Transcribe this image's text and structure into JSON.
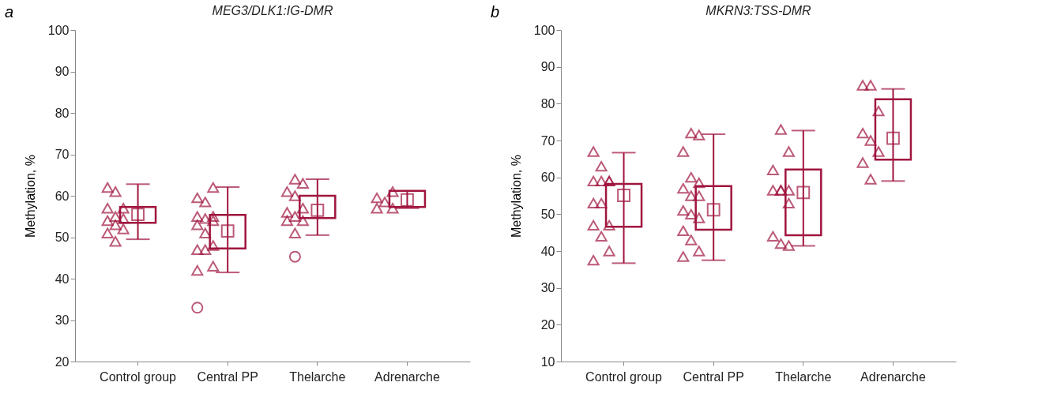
{
  "chart_data": [
    {
      "type": "box",
      "title": "MEG3/DLK1:IG-DMR",
      "ylabel": "Methylation, %",
      "annotations": [
        "a"
      ],
      "color": "#a0153e",
      "grid": false,
      "categories": [
        "Control group",
        "Central PP",
        "Thelarche",
        "Adrenarche"
      ],
      "ylim": [
        20,
        100
      ],
      "yticks": [
        20,
        30,
        40,
        50,
        60,
        70,
        80,
        90,
        100
      ],
      "boxes": [
        {
          "low": 49.5,
          "q1": 53.5,
          "median": 55.5,
          "q3": 57.3,
          "high": 62.8
        },
        {
          "low": 41.5,
          "q1": 47.3,
          "median": 51.5,
          "q3": 55.4,
          "high": 62.1
        },
        {
          "low": 50.5,
          "q1": 54.6,
          "median": 56.5,
          "q3": 60,
          "high": 64
        },
        {
          "low": 57,
          "q1": 57.3,
          "median": 59,
          "q3": 61.2,
          "high": 61.2
        }
      ],
      "series": [
        {
          "type": "scatter",
          "color": "#a0153e",
          "marker": "triangle",
          "x": [
            "Control group",
            "Control group",
            "Control group",
            "Control group",
            "Control group",
            "Control group",
            "Control group",
            "Control group",
            "Control group",
            "Control group",
            "Control group",
            "Central PP",
            "Central PP",
            "Central PP",
            "Central PP",
            "Central PP",
            "Central PP",
            "Central PP",
            "Central PP",
            "Central PP",
            "Central PP",
            "Central PP",
            "Central PP",
            "Central PP",
            "Central PP",
            "Thelarche",
            "Thelarche",
            "Thelarche",
            "Thelarche",
            "Thelarche",
            "Thelarche",
            "Thelarche",
            "Thelarche",
            "Thelarche",
            "Thelarche",
            "Adrenarche",
            "Adrenarche",
            "Adrenarche",
            "Adrenarche",
            "Adrenarche"
          ],
          "values": [
            62,
            61,
            57,
            57,
            55,
            54.5,
            54,
            53,
            52,
            51,
            49,
            62,
            59.5,
            58.5,
            55,
            55,
            54.5,
            54,
            53,
            51,
            48,
            47,
            47,
            43,
            42,
            64,
            63,
            61,
            60,
            57,
            56,
            55,
            54,
            54,
            51,
            61,
            59.5,
            58.5,
            57,
            57
          ]
        },
        {
          "type": "scatter",
          "color": "#a0153e",
          "marker": "circle",
          "x": [
            "Central PP",
            "Thelarche"
          ],
          "values": [
            33,
            45.3
          ]
        }
      ]
    },
    {
      "type": "box",
      "title": "MKRN3:TSS-DMR",
      "ylabel": "Methylation, %",
      "annotations": [
        "b"
      ],
      "color": "#a0153e",
      "grid": false,
      "categories": [
        "Control group",
        "Central PP",
        "Thelarche",
        "Adrenarche"
      ],
      "ylim": [
        10,
        100
      ],
      "yticks": [
        10,
        20,
        30,
        40,
        50,
        60,
        70,
        80,
        90,
        100
      ],
      "boxes": [
        {
          "low": 36.7,
          "q1": 46.6,
          "median": 55.1,
          "q3": 58.2,
          "high": 66.7
        },
        {
          "low": 37.5,
          "q1": 45.8,
          "median": 51.2,
          "q3": 57.6,
          "high": 71.7
        },
        {
          "low": 41.4,
          "q1": 44.3,
          "median": 55.9,
          "q3": 62.1,
          "high": 72.7
        },
        {
          "low": 59,
          "q1": 64.8,
          "median": 70.6,
          "q3": 81.2,
          "high": 84
        }
      ],
      "series": [
        {
          "type": "scatter",
          "color": "#a0153e",
          "marker": "triangle",
          "x": [
            "Control group",
            "Control group",
            "Control group",
            "Control group",
            "Control group",
            "Control group",
            "Control group",
            "Control group",
            "Control group",
            "Control group",
            "Control group",
            "Control group",
            "Control group",
            "Central PP",
            "Central PP",
            "Central PP",
            "Central PP",
            "Central PP",
            "Central PP",
            "Central PP",
            "Central PP",
            "Central PP",
            "Central PP",
            "Central PP",
            "Central PP",
            "Central PP",
            "Central PP",
            "Central PP",
            "Thelarche",
            "Thelarche",
            "Thelarche",
            "Thelarche",
            "Thelarche",
            "Thelarche",
            "Thelarche",
            "Thelarche",
            "Thelarche",
            "Thelarche",
            "Thelarche",
            "Adrenarche",
            "Adrenarche",
            "Adrenarche",
            "Adrenarche",
            "Adrenarche",
            "Adrenarche",
            "Adrenarche",
            "Adrenarche"
          ],
          "values": [
            67,
            63,
            59,
            59,
            59,
            59,
            53,
            53,
            47,
            47,
            44,
            40,
            37.5,
            72,
            71.5,
            67,
            60,
            58.5,
            57,
            55,
            55,
            51,
            50,
            49,
            45.5,
            43,
            40,
            38.5,
            73,
            67,
            62,
            56.5,
            56.5,
            56.5,
            56.5,
            53,
            44,
            42,
            41.5,
            85,
            85,
            78,
            72,
            70,
            67,
            64,
            59.5
          ]
        }
      ]
    }
  ]
}
